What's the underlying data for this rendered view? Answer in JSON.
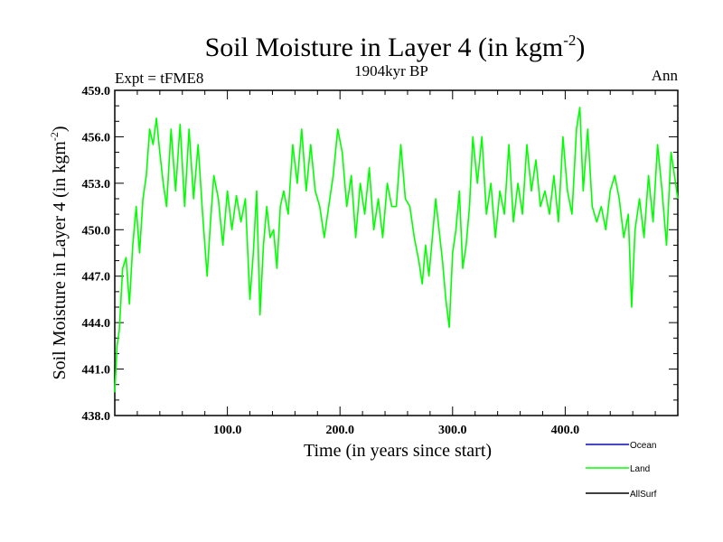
{
  "chart_data": {
    "type": "line",
    "title": "Soil Moisture in Layer 4 (in kgm",
    "title_sup": "-2",
    "title_close": ")",
    "subtitle_left": "Expt = tFME8",
    "subtitle_center": "1904kyr BP",
    "subtitle_right": "Ann",
    "xlabel": "Time (in years since start)",
    "ylabel": "Soil Moisture in Layer 4 (in kgm",
    "ylabel_sup": "-2",
    "ylabel_close": ")",
    "xlim": [
      0,
      500
    ],
    "ylim": [
      438,
      459
    ],
    "xticks": [
      100,
      200,
      300,
      400
    ],
    "xtick_labels": [
      "100.0",
      "200.0",
      "300.0",
      "400.0"
    ],
    "yticks": [
      438,
      441,
      444,
      447,
      450,
      453,
      456,
      459
    ],
    "ytick_labels": [
      "438.0",
      "441.0",
      "444.0",
      "447.0",
      "450.0",
      "453.0",
      "456.0",
      "459.0"
    ],
    "legend": [
      {
        "name": "Ocean",
        "color": "#0000ff"
      },
      {
        "name": "Land",
        "color": "#00ff00"
      },
      {
        "name": "AllSurf",
        "color": "#000000"
      }
    ],
    "series": [
      {
        "name": "Land",
        "color": "#00ff00",
        "x": [
          0,
          2,
          4,
          7,
          10,
          13,
          16,
          19,
          22,
          25,
          28,
          31,
          34,
          37,
          40,
          43,
          46,
          50,
          54,
          58,
          62,
          66,
          70,
          74,
          78,
          82,
          85,
          88,
          92,
          96,
          100,
          104,
          108,
          112,
          116,
          120,
          123,
          126,
          129,
          132,
          135,
          138,
          141,
          144,
          147,
          150,
          154,
          158,
          162,
          166,
          170,
          174,
          178,
          182,
          186,
          190,
          194,
          198,
          202,
          206,
          210,
          214,
          218,
          222,
          226,
          230,
          234,
          238,
          242,
          246,
          250,
          254,
          258,
          262,
          266,
          270,
          273,
          276,
          279,
          282,
          285,
          288,
          291,
          294,
          297,
          300,
          303,
          306,
          309,
          312,
          315,
          318,
          322,
          326,
          330,
          334,
          338,
          342,
          346,
          350,
          354,
          358,
          362,
          366,
          370,
          374,
          378,
          382,
          386,
          390,
          394,
          398,
          402,
          406,
          410,
          413,
          416,
          420,
          424,
          428,
          432,
          436,
          440,
          444,
          448,
          452,
          456,
          459,
          462,
          466,
          470,
          474,
          478,
          482,
          486,
          490,
          494,
          497,
          500
        ],
        "values": [
          439.5,
          442.5,
          443.5,
          447.5,
          448.2,
          445.2,
          449,
          451.5,
          448.5,
          452,
          453.5,
          456.5,
          455.5,
          457.2,
          455,
          453,
          451.5,
          456.5,
          452.5,
          456.8,
          451.5,
          456.5,
          452,
          455.5,
          451,
          447,
          450.5,
          453.5,
          452,
          449,
          452.5,
          450,
          452.2,
          450.5,
          452,
          445.5,
          448.5,
          452.5,
          444.5,
          449,
          451.5,
          449.5,
          450,
          447.5,
          451.5,
          452.5,
          451,
          455.5,
          453,
          456.5,
          452.5,
          455.5,
          452.5,
          451.5,
          449.5,
          451.5,
          453.5,
          456.5,
          455,
          451.5,
          453.5,
          449.5,
          453,
          451,
          454,
          450,
          452,
          449.5,
          453,
          451.5,
          451.5,
          455.5,
          452,
          451.5,
          449.5,
          448,
          446.5,
          449,
          447,
          449.5,
          452,
          450,
          448,
          445.5,
          443.7,
          448.5,
          450,
          452.5,
          447.5,
          449,
          451.5,
          456,
          453,
          456,
          451,
          453,
          449.5,
          452.5,
          451,
          455.5,
          450.5,
          453,
          451,
          455.5,
          452.5,
          454.5,
          451.5,
          452.5,
          451,
          453.5,
          450.5,
          456,
          452.5,
          451,
          456.5,
          457.9,
          452.5,
          456.5,
          451.5,
          450.5,
          451.5,
          450,
          452.5,
          453.5,
          452,
          449.5,
          451,
          445,
          450,
          452,
          449.5,
          453.5,
          450.5,
          455.5,
          452.5,
          449,
          455,
          453.5,
          452
        ]
      }
    ]
  }
}
